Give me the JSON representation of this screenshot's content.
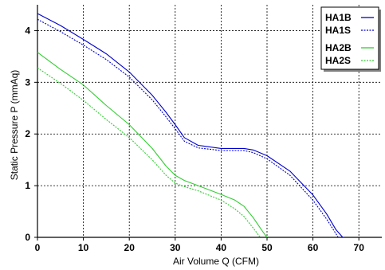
{
  "chart_data": {
    "type": "line",
    "title": "",
    "xlabel": "Air Volume Q (CFM)",
    "ylabel": "Static Pressure P (mmAq)",
    "xlim": [
      0,
      75
    ],
    "ylim": [
      0,
      4.5
    ],
    "xticks": [
      0,
      10,
      20,
      30,
      40,
      50,
      60,
      70
    ],
    "yticks": [
      0,
      1,
      2,
      3,
      4
    ],
    "grid": true,
    "legend_position": "top-right",
    "series": [
      {
        "name": "HA1B",
        "color": "#0000cc",
        "style": "solid",
        "x": [
          0,
          5,
          10,
          15,
          20,
          25,
          28,
          30,
          32,
          35,
          40,
          45,
          47,
          50,
          55,
          60,
          63,
          65,
          66.5
        ],
        "y": [
          4.33,
          4.1,
          3.83,
          3.55,
          3.2,
          2.75,
          2.42,
          2.18,
          1.93,
          1.78,
          1.72,
          1.72,
          1.69,
          1.58,
          1.28,
          0.82,
          0.45,
          0.15,
          0
        ]
      },
      {
        "name": "HA1S",
        "color": "#0000cc",
        "style": "dotted",
        "x": [
          0,
          5,
          10,
          15,
          20,
          25,
          28,
          30,
          32,
          35,
          40,
          45,
          47,
          50,
          55,
          60,
          63,
          65.5
        ],
        "y": [
          4.22,
          3.98,
          3.72,
          3.44,
          3.1,
          2.66,
          2.33,
          2.1,
          1.86,
          1.73,
          1.68,
          1.68,
          1.64,
          1.52,
          1.2,
          0.72,
          0.35,
          0
        ]
      },
      {
        "name": "HA2B",
        "color": "#33cc33",
        "style": "solid",
        "x": [
          0,
          5,
          10,
          15,
          20,
          25,
          28,
          30,
          32,
          35,
          40,
          43,
          45,
          47,
          49,
          50
        ],
        "y": [
          3.58,
          3.25,
          2.95,
          2.55,
          2.18,
          1.72,
          1.38,
          1.2,
          1.1,
          1.0,
          0.83,
          0.72,
          0.6,
          0.38,
          0.12,
          0
        ]
      },
      {
        "name": "HA2S",
        "color": "#33cc33",
        "style": "dotted",
        "x": [
          0,
          5,
          10,
          15,
          20,
          25,
          28,
          30,
          32,
          35,
          40,
          43,
          45,
          47,
          48.5
        ],
        "y": [
          3.28,
          2.98,
          2.65,
          2.28,
          1.93,
          1.5,
          1.2,
          1.05,
          0.98,
          0.9,
          0.72,
          0.55,
          0.4,
          0.18,
          0
        ]
      }
    ]
  }
}
